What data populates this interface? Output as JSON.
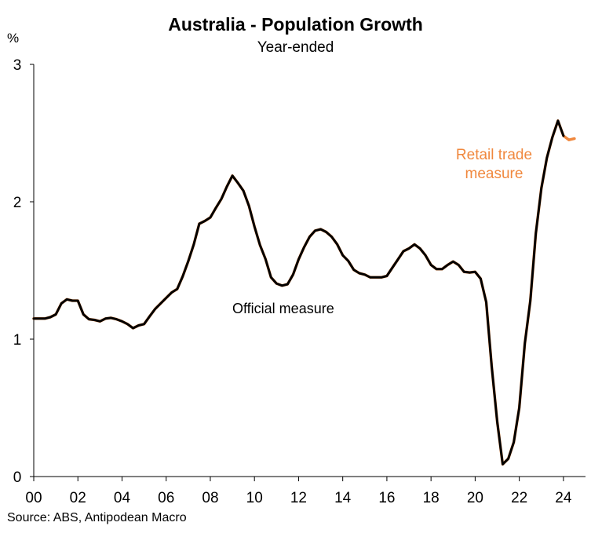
{
  "chart_data": {
    "type": "line",
    "title": "Australia - Population Growth",
    "subtitle": "Year-ended",
    "ylabel": "%",
    "xlabel": "",
    "xlim": [
      2000,
      2025
    ],
    "ylim": [
      0,
      3
    ],
    "yticks": [
      "0",
      "1",
      "2",
      "3"
    ],
    "xticks": [
      "00",
      "02",
      "04",
      "06",
      "08",
      "10",
      "12",
      "14",
      "16",
      "18",
      "20",
      "22",
      "24"
    ],
    "grid": false,
    "frequency": "quarterly",
    "x_start": 2000.0,
    "series": [
      {
        "name": "Retail trade measure",
        "color": "#F0883E",
        "values": [
          1.15,
          1.15,
          1.15,
          1.16,
          1.18,
          1.26,
          1.29,
          1.28,
          1.28,
          1.18,
          1.145,
          1.14,
          1.13,
          1.15,
          1.155,
          1.145,
          1.13,
          1.11,
          1.08,
          1.1,
          1.11,
          1.166,
          1.22,
          1.26,
          1.3,
          1.34,
          1.365,
          1.457,
          1.566,
          1.69,
          1.84,
          1.86,
          1.886,
          1.955,
          2.02,
          2.11,
          2.19,
          2.137,
          2.08,
          1.97,
          1.82,
          1.686,
          1.583,
          1.45,
          1.405,
          1.39,
          1.4,
          1.47,
          1.58,
          1.67,
          1.745,
          1.79,
          1.8,
          1.78,
          1.745,
          1.69,
          1.61,
          1.57,
          1.505,
          1.48,
          1.47,
          1.45,
          1.45,
          1.45,
          1.46,
          1.52,
          1.58,
          1.64,
          1.66,
          1.69,
          1.66,
          1.61,
          1.54,
          1.51,
          1.51,
          1.54,
          1.565,
          1.54,
          1.49,
          1.485,
          1.49,
          1.44,
          1.27,
          0.8,
          0.4,
          0.09,
          0.13,
          0.25,
          0.5,
          0.97,
          1.28,
          1.77,
          2.1,
          2.32,
          2.47,
          2.59,
          2.48,
          2.45,
          2.46
        ]
      },
      {
        "name": "Official measure",
        "color": "#000000",
        "values": [
          1.15,
          1.15,
          1.15,
          1.16,
          1.18,
          1.26,
          1.29,
          1.28,
          1.28,
          1.18,
          1.145,
          1.14,
          1.13,
          1.15,
          1.155,
          1.145,
          1.13,
          1.11,
          1.08,
          1.1,
          1.11,
          1.166,
          1.22,
          1.26,
          1.3,
          1.34,
          1.365,
          1.457,
          1.566,
          1.69,
          1.84,
          1.86,
          1.886,
          1.955,
          2.02,
          2.11,
          2.19,
          2.137,
          2.08,
          1.97,
          1.82,
          1.686,
          1.583,
          1.45,
          1.405,
          1.39,
          1.4,
          1.47,
          1.58,
          1.67,
          1.745,
          1.79,
          1.8,
          1.78,
          1.745,
          1.69,
          1.61,
          1.57,
          1.505,
          1.48,
          1.47,
          1.45,
          1.45,
          1.45,
          1.46,
          1.52,
          1.58,
          1.64,
          1.66,
          1.69,
          1.66,
          1.61,
          1.54,
          1.51,
          1.51,
          1.54,
          1.565,
          1.54,
          1.49,
          1.485,
          1.49,
          1.44,
          1.27,
          0.8,
          0.4,
          0.09,
          0.13,
          0.25,
          0.5,
          0.97,
          1.28,
          1.77,
          2.1,
          2.32,
          2.47,
          2.59,
          2.48
        ]
      }
    ],
    "annotations": {
      "official": "Official measure",
      "retail": "Retail trade measure"
    },
    "source": "Source: ABS, Antipodean Macro"
  }
}
